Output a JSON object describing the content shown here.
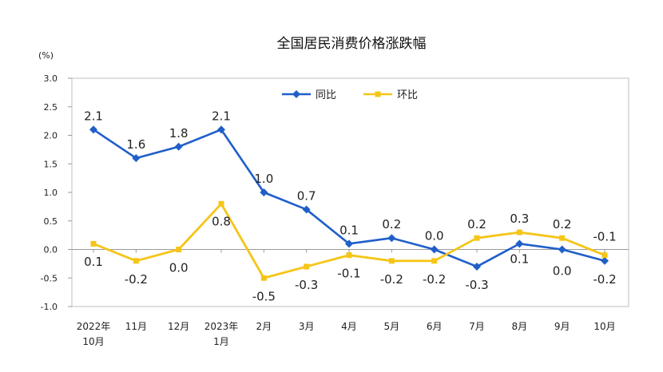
{
  "chart_data": {
    "type": "line",
    "title": "全国居民消费价格涨跌幅",
    "unit": "(%)",
    "ylim": [
      -1.0,
      3.0
    ],
    "yticks": [
      "3.0",
      "2.5",
      "2.0",
      "1.5",
      "1.0",
      "0.5",
      "0.0",
      "-0.5",
      "-1.0"
    ],
    "categories": [
      [
        "2022年",
        "10月"
      ],
      [
        "11月"
      ],
      [
        "12月"
      ],
      [
        "2023年",
        "1月"
      ],
      [
        "2月"
      ],
      [
        "3月"
      ],
      [
        "4月"
      ],
      [
        "5月"
      ],
      [
        "6月"
      ],
      [
        "7月"
      ],
      [
        "8月"
      ],
      [
        "9月"
      ],
      [
        "10月"
      ]
    ],
    "series": [
      {
        "name": "同比",
        "color": "#1F5FC9",
        "marker": "diamond",
        "values": [
          2.1,
          1.6,
          1.8,
          2.1,
          1.0,
          0.7,
          0.1,
          0.2,
          0.0,
          -0.3,
          0.1,
          0.0,
          -0.2
        ],
        "labels": [
          "2.1",
          "1.6",
          "1.8",
          "2.1",
          "1.0",
          "0.7",
          "0.1",
          "0.2",
          "0.0",
          "-0.3",
          "0.1",
          "0.0",
          "-0.2"
        ]
      },
      {
        "name": "环比",
        "color": "#F5C518",
        "marker": "square",
        "values": [
          0.1,
          -0.2,
          0.0,
          0.8,
          -0.5,
          -0.3,
          -0.1,
          -0.2,
          -0.2,
          0.2,
          0.3,
          0.2,
          -0.1
        ],
        "labels": [
          "0.1",
          "-0.2",
          "0.0",
          "0.8",
          "-0.5",
          "-0.3",
          "-0.1",
          "-0.2",
          "-0.2",
          "0.2",
          "0.3",
          "0.2",
          "-0.1"
        ]
      }
    ],
    "legend": {
      "position": "top-center"
    },
    "grid": false
  }
}
